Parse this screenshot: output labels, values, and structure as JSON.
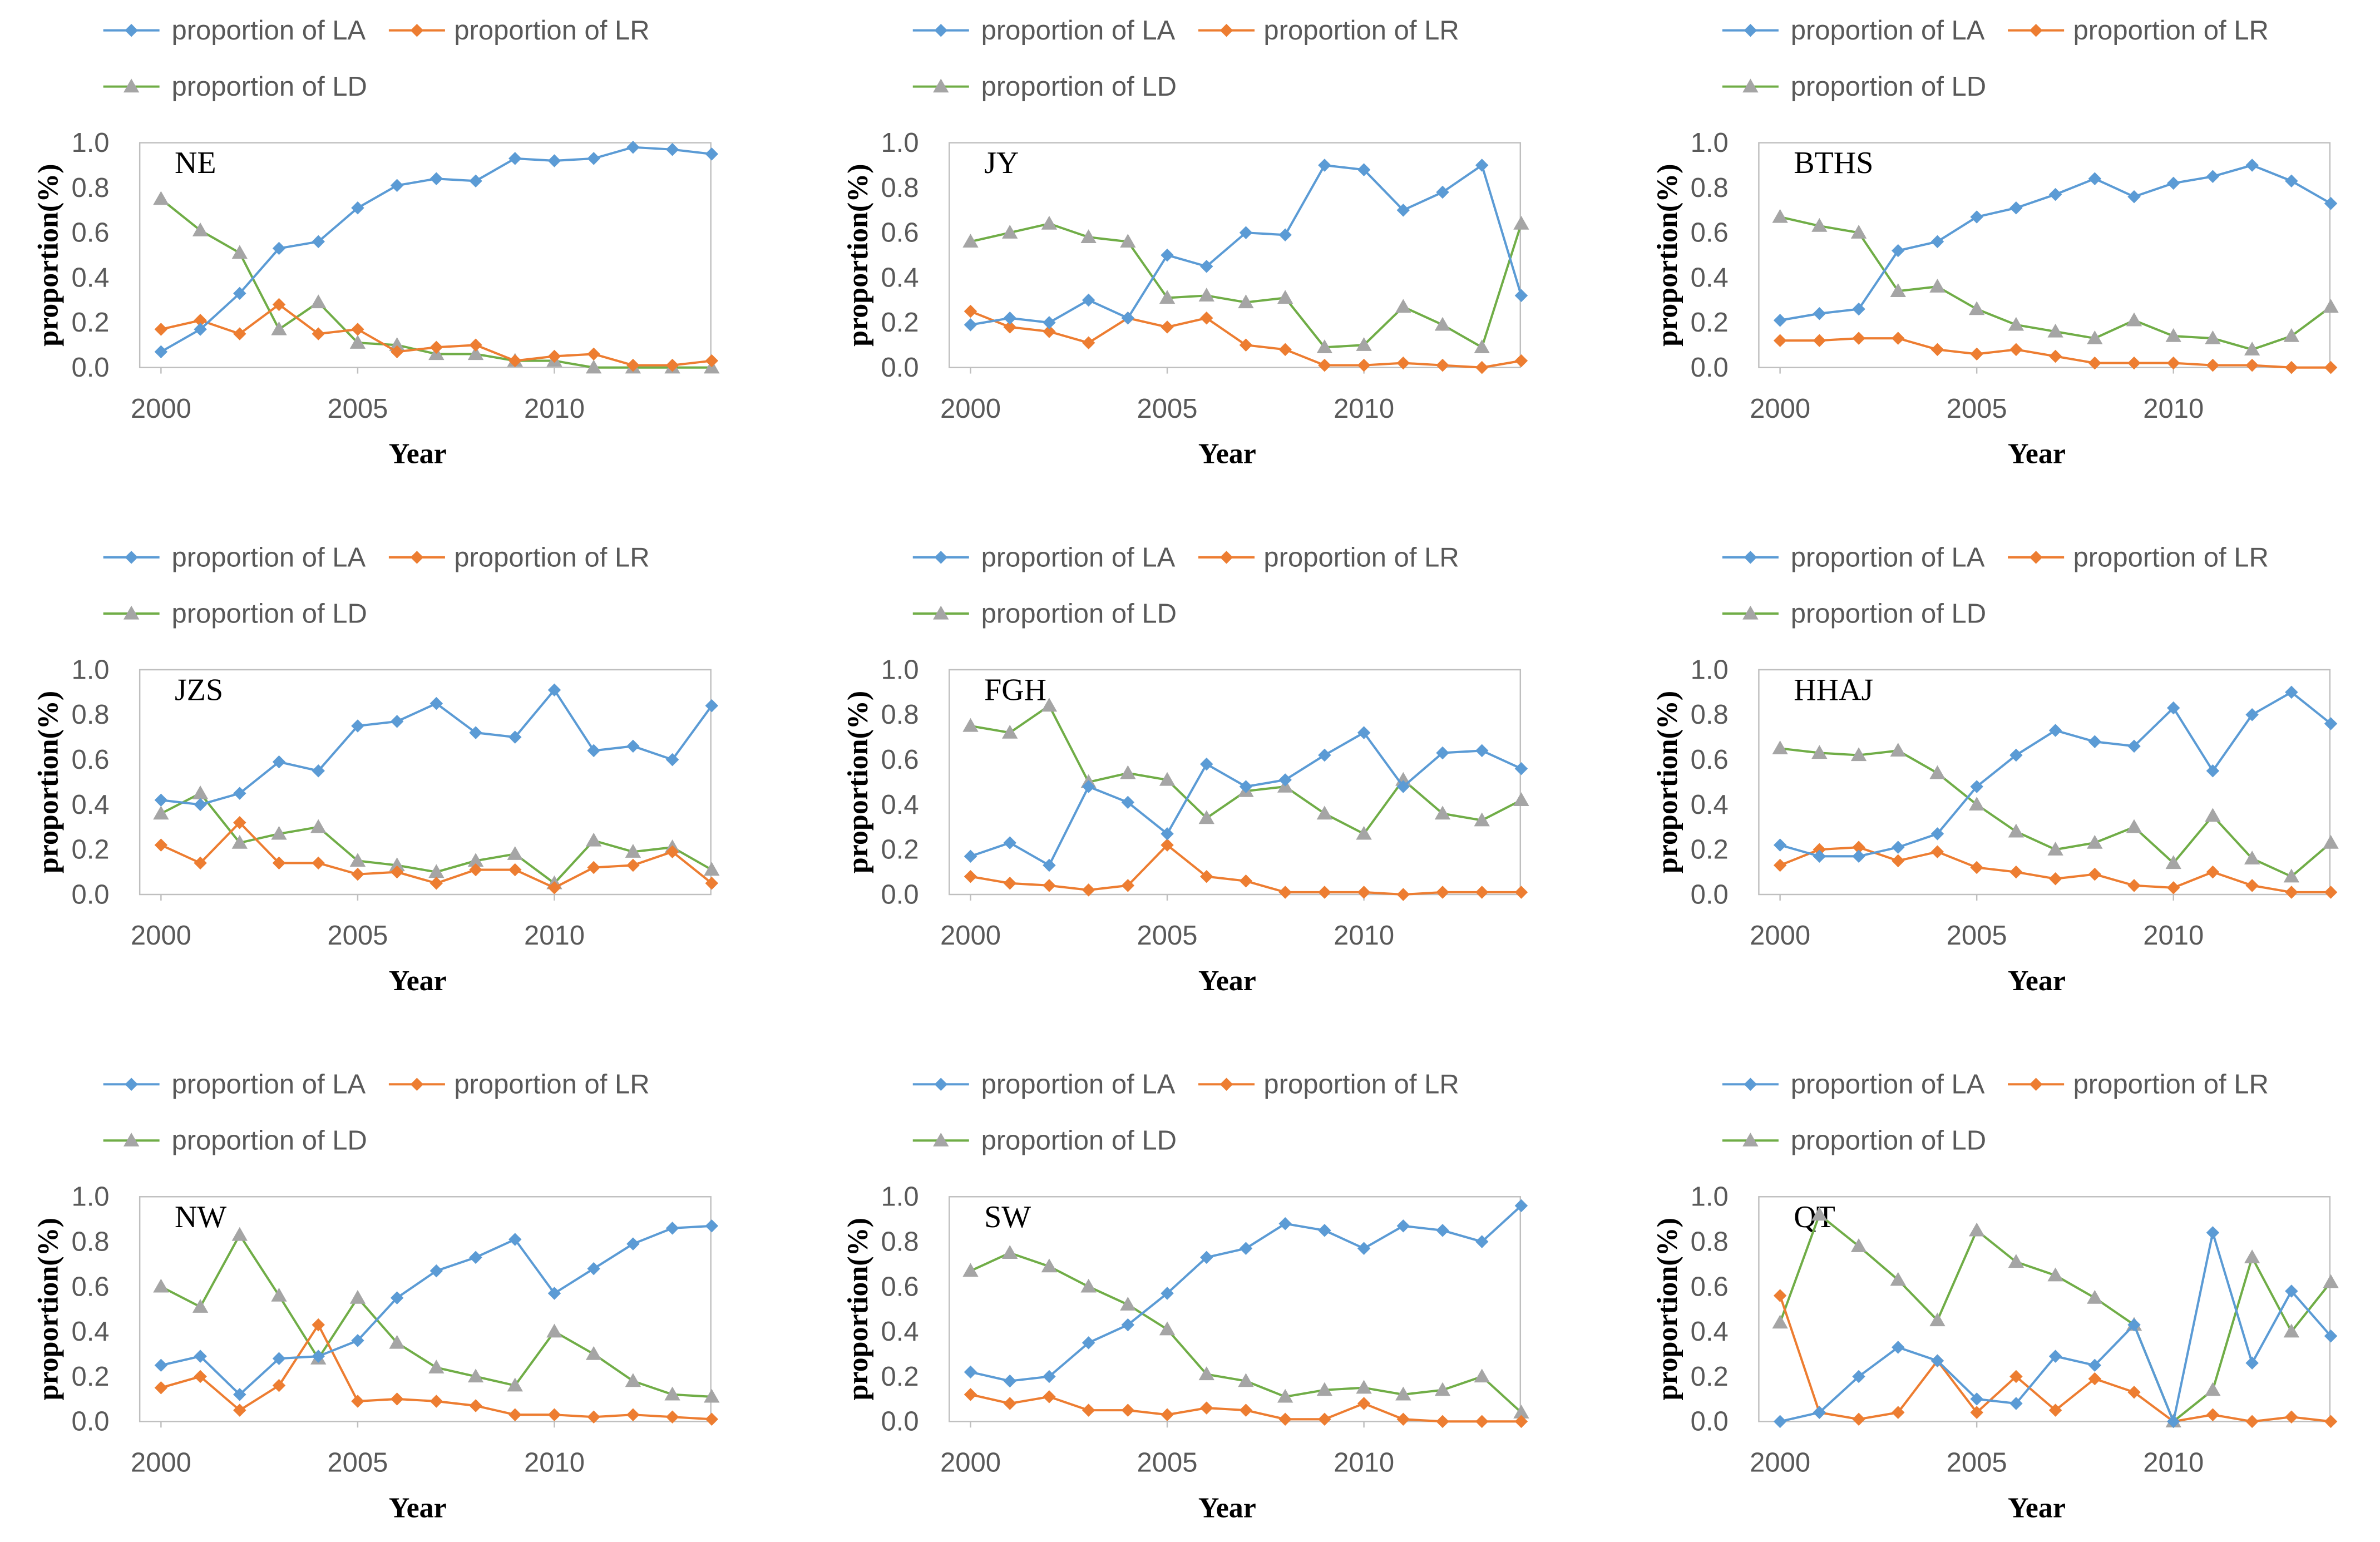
{
  "colors": {
    "LA": "#5B9BD5",
    "LR": "#ED7D31",
    "LD_line": "#70AD47",
    "LD_marker": "#A5A5A5",
    "axis": "#BFBFBF"
  },
  "chart_data": [
    {
      "type": "line",
      "title": "NE",
      "xlabel": "Year",
      "ylabel": "proportion(%)",
      "ylim": [
        0,
        1.0
      ],
      "yticks": [
        "0.0",
        "0.2",
        "0.4",
        "0.6",
        "0.8",
        "1.0"
      ],
      "xticks": [
        "2000",
        "2005",
        "2010"
      ],
      "x": [
        2000,
        2001,
        2002,
        2003,
        2004,
        2005,
        2006,
        2007,
        2008,
        2009,
        2010,
        2011,
        2012,
        2013,
        2014
      ],
      "series": [
        {
          "name": "proportion of LA",
          "values": [
            0.07,
            0.17,
            0.33,
            0.53,
            0.56,
            0.71,
            0.81,
            0.84,
            0.83,
            0.93,
            0.92,
            0.93,
            0.98,
            0.97,
            0.95
          ]
        },
        {
          "name": "proportion of LR",
          "values": [
            0.17,
            0.21,
            0.15,
            0.28,
            0.15,
            0.17,
            0.07,
            0.09,
            0.1,
            0.03,
            0.05,
            0.06,
            0.01,
            0.01,
            0.03
          ]
        },
        {
          "name": "proportion of LD",
          "values": [
            0.75,
            0.61,
            0.51,
            0.17,
            0.29,
            0.11,
            0.1,
            0.06,
            0.06,
            0.03,
            0.03,
            0.0,
            0.0,
            0.0,
            0.0
          ]
        }
      ]
    },
    {
      "type": "line",
      "title": "JY",
      "xlabel": "Year",
      "ylabel": "proportion(%)",
      "ylim": [
        0,
        1.0
      ],
      "yticks": [
        "0.0",
        "0.2",
        "0.4",
        "0.6",
        "0.8",
        "1.0"
      ],
      "xticks": [
        "2000",
        "2005",
        "2010"
      ],
      "x": [
        2000,
        2001,
        2002,
        2003,
        2004,
        2005,
        2006,
        2007,
        2008,
        2009,
        2010,
        2011,
        2012,
        2013,
        2014
      ],
      "series": [
        {
          "name": "proportion of LA",
          "values": [
            0.19,
            0.22,
            0.2,
            0.3,
            0.22,
            0.5,
            0.45,
            0.6,
            0.59,
            0.9,
            0.88,
            0.7,
            0.78,
            0.9,
            0.32
          ]
        },
        {
          "name": "proportion of LR",
          "values": [
            0.25,
            0.18,
            0.16,
            0.11,
            0.22,
            0.18,
            0.22,
            0.1,
            0.08,
            0.01,
            0.01,
            0.02,
            0.01,
            0.0,
            0.03
          ]
        },
        {
          "name": "proportion of LD",
          "values": [
            0.56,
            0.6,
            0.64,
            0.58,
            0.56,
            0.31,
            0.32,
            0.29,
            0.31,
            0.09,
            0.1,
            0.27,
            0.19,
            0.09,
            0.64
          ]
        }
      ]
    },
    {
      "type": "line",
      "title": "BTHS",
      "xlabel": "Year",
      "ylabel": "proportion(%)",
      "ylim": [
        0,
        1.0
      ],
      "yticks": [
        "0.0",
        "0.2",
        "0.4",
        "0.6",
        "0.8",
        "1.0"
      ],
      "xticks": [
        "2000",
        "2005",
        "2010"
      ],
      "x": [
        2000,
        2001,
        2002,
        2003,
        2004,
        2005,
        2006,
        2007,
        2008,
        2009,
        2010,
        2011,
        2012,
        2013,
        2014
      ],
      "series": [
        {
          "name": "proportion of LA",
          "values": [
            0.21,
            0.24,
            0.26,
            0.52,
            0.56,
            0.67,
            0.71,
            0.77,
            0.84,
            0.76,
            0.82,
            0.85,
            0.9,
            0.83,
            0.73
          ]
        },
        {
          "name": "proportion of LR",
          "values": [
            0.12,
            0.12,
            0.13,
            0.13,
            0.08,
            0.06,
            0.08,
            0.05,
            0.02,
            0.02,
            0.02,
            0.01,
            0.01,
            0.0,
            0.0
          ]
        },
        {
          "name": "proportion of LD",
          "values": [
            0.67,
            0.63,
            0.6,
            0.34,
            0.36,
            0.26,
            0.19,
            0.16,
            0.13,
            0.21,
            0.14,
            0.13,
            0.08,
            0.14,
            0.27
          ]
        }
      ]
    },
    {
      "type": "line",
      "title": "JZS",
      "xlabel": "Year",
      "ylabel": "proportion(%)",
      "ylim": [
        0,
        1.0
      ],
      "yticks": [
        "0.0",
        "0.2",
        "0.4",
        "0.6",
        "0.8",
        "1.0"
      ],
      "xticks": [
        "2000",
        "2005",
        "2010"
      ],
      "x": [
        2000,
        2001,
        2002,
        2003,
        2004,
        2005,
        2006,
        2007,
        2008,
        2009,
        2010,
        2011,
        2012,
        2013,
        2014
      ],
      "series": [
        {
          "name": "proportion of LA",
          "values": [
            0.42,
            0.4,
            0.45,
            0.59,
            0.55,
            0.75,
            0.77,
            0.85,
            0.72,
            0.7,
            0.91,
            0.64,
            0.66,
            0.6,
            0.84
          ]
        },
        {
          "name": "proportion of LR",
          "values": [
            0.22,
            0.14,
            0.32,
            0.14,
            0.14,
            0.09,
            0.1,
            0.05,
            0.11,
            0.11,
            0.03,
            0.12,
            0.13,
            0.19,
            0.05
          ]
        },
        {
          "name": "proportion of LD",
          "values": [
            0.36,
            0.45,
            0.23,
            0.27,
            0.3,
            0.15,
            0.13,
            0.1,
            0.15,
            0.18,
            0.05,
            0.24,
            0.19,
            0.21,
            0.11
          ]
        }
      ]
    },
    {
      "type": "line",
      "title": "FGH",
      "xlabel": "Year",
      "ylabel": "proportion(%)",
      "ylim": [
        0,
        1.0
      ],
      "yticks": [
        "0.0",
        "0.2",
        "0.4",
        "0.6",
        "0.8",
        "1.0"
      ],
      "xticks": [
        "2000",
        "2005",
        "2010"
      ],
      "x": [
        2000,
        2001,
        2002,
        2003,
        2004,
        2005,
        2006,
        2007,
        2008,
        2009,
        2010,
        2011,
        2012,
        2013,
        2014
      ],
      "series": [
        {
          "name": "proportion of LA",
          "values": [
            0.17,
            0.23,
            0.13,
            0.48,
            0.41,
            0.27,
            0.58,
            0.48,
            0.51,
            0.62,
            0.72,
            0.48,
            0.63,
            0.64,
            0.56
          ]
        },
        {
          "name": "proportion of LR",
          "values": [
            0.08,
            0.05,
            0.04,
            0.02,
            0.04,
            0.22,
            0.08,
            0.06,
            0.01,
            0.01,
            0.01,
            0.0,
            0.01,
            0.01,
            0.01
          ]
        },
        {
          "name": "proportion of LD",
          "values": [
            0.75,
            0.72,
            0.84,
            0.5,
            0.54,
            0.51,
            0.34,
            0.46,
            0.48,
            0.36,
            0.27,
            0.51,
            0.36,
            0.33,
            0.42
          ]
        }
      ]
    },
    {
      "type": "line",
      "title": "HHAJ",
      "xlabel": "Year",
      "ylabel": "proportion(%)",
      "ylim": [
        0,
        1.0
      ],
      "yticks": [
        "0.0",
        "0.2",
        "0.4",
        "0.6",
        "0.8",
        "1.0"
      ],
      "xticks": [
        "2000",
        "2005",
        "2010"
      ],
      "x": [
        2000,
        2001,
        2002,
        2003,
        2004,
        2005,
        2006,
        2007,
        2008,
        2009,
        2010,
        2011,
        2012,
        2013,
        2014
      ],
      "series": [
        {
          "name": "proportion of LA",
          "values": [
            0.22,
            0.17,
            0.17,
            0.21,
            0.27,
            0.48,
            0.62,
            0.73,
            0.68,
            0.66,
            0.83,
            0.55,
            0.8,
            0.9,
            0.76
          ]
        },
        {
          "name": "proportion of LR",
          "values": [
            0.13,
            0.2,
            0.21,
            0.15,
            0.19,
            0.12,
            0.1,
            0.07,
            0.09,
            0.04,
            0.03,
            0.1,
            0.04,
            0.01,
            0.01
          ]
        },
        {
          "name": "proportion of LD",
          "values": [
            0.65,
            0.63,
            0.62,
            0.64,
            0.54,
            0.4,
            0.28,
            0.2,
            0.23,
            0.3,
            0.14,
            0.35,
            0.16,
            0.08,
            0.23
          ]
        }
      ]
    },
    {
      "type": "line",
      "title": "NW",
      "xlabel": "Year",
      "ylabel": "proportion(%)",
      "ylim": [
        0,
        1.0
      ],
      "yticks": [
        "0.0",
        "0.2",
        "0.4",
        "0.6",
        "0.8",
        "1.0"
      ],
      "xticks": [
        "2000",
        "2005",
        "2010"
      ],
      "x": [
        2000,
        2001,
        2002,
        2003,
        2004,
        2005,
        2006,
        2007,
        2008,
        2009,
        2010,
        2011,
        2012,
        2013,
        2014
      ],
      "series": [
        {
          "name": "proportion of LA",
          "values": [
            0.25,
            0.29,
            0.12,
            0.28,
            0.29,
            0.36,
            0.55,
            0.67,
            0.73,
            0.81,
            0.57,
            0.68,
            0.79,
            0.86,
            0.87
          ]
        },
        {
          "name": "proportion of LR",
          "values": [
            0.15,
            0.2,
            0.05,
            0.16,
            0.43,
            0.09,
            0.1,
            0.09,
            0.07,
            0.03,
            0.03,
            0.02,
            0.03,
            0.02,
            0.01
          ]
        },
        {
          "name": "proportion of LD",
          "values": [
            0.6,
            0.51,
            0.83,
            0.56,
            0.28,
            0.55,
            0.35,
            0.24,
            0.2,
            0.16,
            0.4,
            0.3,
            0.18,
            0.12,
            0.11
          ]
        }
      ]
    },
    {
      "type": "line",
      "title": "SW",
      "xlabel": "Year",
      "ylabel": "proportion(%)",
      "ylim": [
        0,
        1.0
      ],
      "yticks": [
        "0.0",
        "0.2",
        "0.4",
        "0.6",
        "0.8",
        "1.0"
      ],
      "xticks": [
        "2000",
        "2005",
        "2010"
      ],
      "x": [
        2000,
        2001,
        2002,
        2003,
        2004,
        2005,
        2006,
        2007,
        2008,
        2009,
        2010,
        2011,
        2012,
        2013,
        2014
      ],
      "series": [
        {
          "name": "proportion of LA",
          "values": [
            0.22,
            0.18,
            0.2,
            0.35,
            0.43,
            0.57,
            0.73,
            0.77,
            0.88,
            0.85,
            0.77,
            0.87,
            0.85,
            0.8,
            0.96
          ]
        },
        {
          "name": "proportion of LR",
          "values": [
            0.12,
            0.08,
            0.11,
            0.05,
            0.05,
            0.03,
            0.06,
            0.05,
            0.01,
            0.01,
            0.08,
            0.01,
            0.0,
            0.0,
            0.0
          ]
        },
        {
          "name": "proportion of LD",
          "values": [
            0.67,
            0.75,
            0.69,
            0.6,
            0.52,
            0.41,
            0.21,
            0.18,
            0.11,
            0.14,
            0.15,
            0.12,
            0.14,
            0.2,
            0.04
          ]
        }
      ]
    },
    {
      "type": "line",
      "title": "QT",
      "xlabel": "Year",
      "ylabel": "proportion(%)",
      "ylim": [
        0,
        1.0
      ],
      "yticks": [
        "0.0",
        "0.2",
        "0.4",
        "0.6",
        "0.8",
        "1.0"
      ],
      "xticks": [
        "2000",
        "2005",
        "2010"
      ],
      "x": [
        2000,
        2001,
        2002,
        2003,
        2004,
        2005,
        2006,
        2007,
        2008,
        2009,
        2010,
        2011,
        2012,
        2013,
        2014
      ],
      "series": [
        {
          "name": "proportion of LA",
          "values": [
            0.0,
            0.04,
            0.2,
            0.33,
            0.27,
            0.1,
            0.08,
            0.29,
            0.25,
            0.43,
            0.0,
            0.84,
            0.26,
            0.58,
            0.38
          ]
        },
        {
          "name": "proportion of LR",
          "values": [
            0.56,
            0.04,
            0.01,
            0.04,
            0.27,
            0.04,
            0.2,
            0.05,
            0.19,
            0.13,
            0.0,
            0.03,
            0.0,
            0.02,
            0.0
          ]
        },
        {
          "name": "proportion of LD",
          "values": [
            0.44,
            0.92,
            0.78,
            0.63,
            0.45,
            0.85,
            0.71,
            0.65,
            0.55,
            0.43,
            0.0,
            0.14,
            0.73,
            0.4,
            0.62
          ]
        }
      ]
    }
  ]
}
